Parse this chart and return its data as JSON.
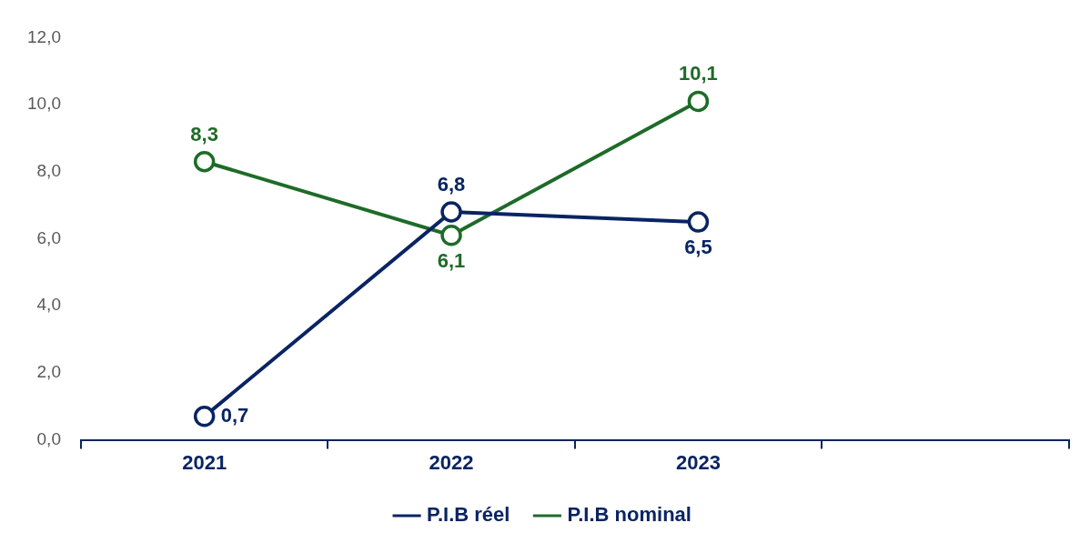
{
  "chart_data": {
    "type": "line",
    "categories": [
      "2021",
      "2022",
      "2023",
      null
    ],
    "series": [
      {
        "name": "P.I.B réel",
        "color": "#0a2463",
        "values": [
          0.7,
          6.8,
          6.5,
          null
        ],
        "value_labels": [
          "0,7",
          "6,8",
          "6,5",
          null
        ]
      },
      {
        "name": "P.I.B nominal",
        "color": "#1e6b28",
        "values": [
          8.3,
          6.1,
          10.1,
          null
        ],
        "value_labels": [
          "8,3",
          "6,1",
          "10,1",
          null
        ]
      }
    ],
    "ylim": [
      0,
      12
    ],
    "yticks": [
      {
        "value": 0,
        "label": "0,0"
      },
      {
        "value": 2,
        "label": "2,0"
      },
      {
        "value": 4,
        "label": "4,0"
      },
      {
        "value": 6,
        "label": "6,0"
      },
      {
        "value": 8,
        "label": "8,0"
      },
      {
        "value": 10,
        "label": "10,0"
      },
      {
        "value": 12,
        "label": "12,0"
      }
    ],
    "grid": false,
    "legend": "bottom",
    "marker": "circle",
    "line_style": "solid"
  }
}
